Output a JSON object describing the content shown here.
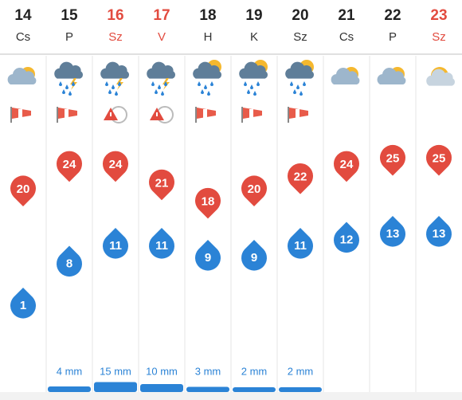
{
  "days": [
    {
      "day": "14",
      "weekday": "Cs",
      "max": 20,
      "min": 1,
      "precip": null
    },
    {
      "day": "15",
      "weekday": "P",
      "max": 24,
      "min": 8,
      "precip": {
        "value": 4,
        "label": "4 mm"
      }
    },
    {
      "day": "16",
      "weekday": "Sz",
      "max": 24,
      "min": 11,
      "precip": {
        "value": 15,
        "label": "15 mm"
      }
    },
    {
      "day": "17",
      "weekday": "V",
      "max": 21,
      "min": 11,
      "precip": {
        "value": 10,
        "label": "10 mm"
      }
    },
    {
      "day": "18",
      "weekday": "H",
      "max": 18,
      "min": 9,
      "precip": {
        "value": 3,
        "label": "3 mm"
      }
    },
    {
      "day": "19",
      "weekday": "K",
      "max": 20,
      "min": 9,
      "precip": {
        "value": 2,
        "label": "2 mm"
      }
    },
    {
      "day": "20",
      "weekday": "Sz",
      "max": 22,
      "min": 11,
      "precip": {
        "value": 2,
        "label": "2 mm"
      }
    },
    {
      "day": "21",
      "weekday": "Cs",
      "max": 24,
      "min": 12,
      "precip": null
    },
    {
      "day": "22",
      "weekday": "P",
      "max": 25,
      "min": 13,
      "precip": null
    },
    {
      "day": "23",
      "weekday": "Sz",
      "max": 25,
      "min": 13,
      "precip": null
    }
  ]
}
